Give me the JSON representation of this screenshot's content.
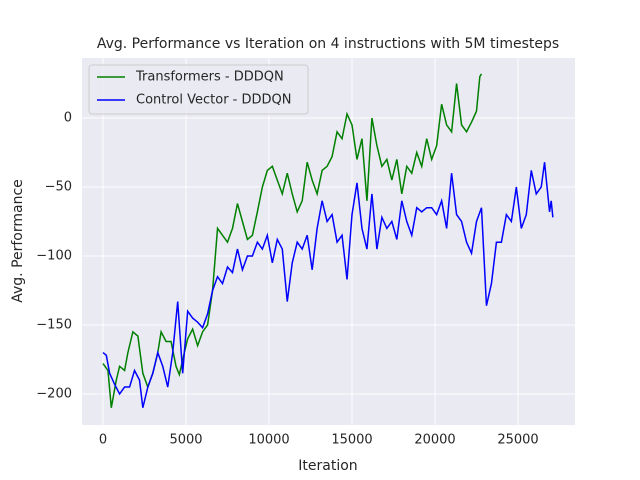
{
  "chart_data": {
    "type": "line",
    "title": "Avg. Performance vs Iteration on 4 instructions with 5M timesteps",
    "x_label": "Iteration",
    "y_label": "Avg. Performance",
    "xlim": [
      -1265,
      28434
    ],
    "ylim": [
      -222.5,
      43.5
    ],
    "xticks": [
      0,
      5000,
      10000,
      15000,
      20000,
      25000
    ],
    "yticks": [
      {
        "value": -200,
        "label": "−200"
      },
      {
        "value": -150,
        "label": "−150"
      },
      {
        "value": -100,
        "label": "−100"
      },
      {
        "value": -50,
        "label": "−50"
      },
      0
    ],
    "grid": true,
    "legend": "upper left",
    "series": [
      {
        "name": "Transformers - DDDQN",
        "color": "#008000",
        "x": [
          0,
          300,
          500,
          800,
          1000,
          1300,
          1500,
          1800,
          2100,
          2400,
          2700,
          3000,
          3300,
          3500,
          3800,
          4100,
          4400,
          4600,
          4900,
          5100,
          5400,
          5700,
          6000,
          6300,
          6600,
          6900,
          7200,
          7500,
          7800,
          8100,
          8400,
          8700,
          9000,
          9300,
          9600,
          9900,
          10200,
          10500,
          10800,
          11100,
          11400,
          11700,
          12000,
          12300,
          12600,
          12900,
          13200,
          13500,
          13800,
          14100,
          14400,
          14700,
          15000,
          15300,
          15600,
          15900,
          16200,
          16500,
          16800,
          17100,
          17400,
          17700,
          18000,
          18300,
          18600,
          18900,
          19200,
          19500,
          19800,
          20100,
          20400,
          20700,
          21000,
          21300,
          21600,
          21900,
          22200,
          22500,
          22700,
          22800
        ],
        "values": [
          -178,
          -183,
          -210,
          -190,
          -180,
          -183,
          -170,
          -155,
          -158,
          -185,
          -195,
          -185,
          -170,
          -155,
          -162,
          -162,
          -180,
          -186,
          -170,
          -160,
          -153,
          -165,
          -155,
          -150,
          -125,
          -80,
          -85,
          -90,
          -80,
          -62,
          -75,
          -88,
          -85,
          -68,
          -50,
          -38,
          -35,
          -45,
          -55,
          -40,
          -55,
          -68,
          -60,
          -32,
          -45,
          -55,
          -38,
          -35,
          -28,
          -10,
          -15,
          3,
          -5,
          -30,
          -15,
          -60,
          0,
          -20,
          -35,
          -30,
          -45,
          -30,
          -55,
          -35,
          -40,
          -25,
          -35,
          -15,
          -30,
          -20,
          10,
          -5,
          -10,
          25,
          -5,
          -10,
          -3,
          5,
          30,
          32
        ]
      },
      {
        "name": "Control Vector - DDDQN",
        "color": "#0000ff",
        "x": [
          0,
          200,
          400,
          700,
          1000,
          1300,
          1600,
          1900,
          2200,
          2400,
          2700,
          3000,
          3300,
          3600,
          3900,
          4200,
          4500,
          4800,
          5100,
          5400,
          5700,
          6000,
          6300,
          6600,
          6900,
          7200,
          7500,
          7800,
          8100,
          8400,
          8700,
          9000,
          9300,
          9600,
          9900,
          10200,
          10500,
          10800,
          11100,
          11400,
          11700,
          12000,
          12300,
          12600,
          12900,
          13200,
          13500,
          13800,
          14100,
          14400,
          14700,
          15000,
          15300,
          15600,
          15900,
          16200,
          16500,
          16800,
          17100,
          17400,
          17700,
          18000,
          18300,
          18600,
          18900,
          19200,
          19500,
          19800,
          20100,
          20400,
          20700,
          21000,
          21300,
          21600,
          21900,
          22200,
          22500,
          22800,
          23100,
          23400,
          23700,
          24000,
          24300,
          24600,
          24900,
          25200,
          25500,
          25800,
          26100,
          26400,
          26600,
          26900,
          27000,
          27100
        ],
        "values": [
          -170,
          -172,
          -185,
          -193,
          -200,
          -195,
          -195,
          -183,
          -190,
          -210,
          -195,
          -185,
          -170,
          -180,
          -195,
          -170,
          -133,
          -185,
          -140,
          -145,
          -148,
          -152,
          -142,
          -125,
          -115,
          -120,
          -108,
          -112,
          -95,
          -110,
          -100,
          -100,
          -90,
          -95,
          -85,
          -105,
          -88,
          -95,
          -133,
          -105,
          -90,
          -95,
          -85,
          -110,
          -80,
          -60,
          -75,
          -70,
          -90,
          -85,
          -117,
          -70,
          -47,
          -80,
          -95,
          -55,
          -95,
          -72,
          -80,
          -75,
          -88,
          -60,
          -75,
          -85,
          -65,
          -68,
          -65,
          -65,
          -70,
          -60,
          -80,
          -40,
          -70,
          -75,
          -90,
          -98,
          -75,
          -65,
          -136,
          -120,
          -90,
          -90,
          -70,
          -75,
          -50,
          -80,
          -70,
          -38,
          -55,
          -50,
          -32,
          -68,
          -60,
          -72
        ]
      }
    ]
  }
}
